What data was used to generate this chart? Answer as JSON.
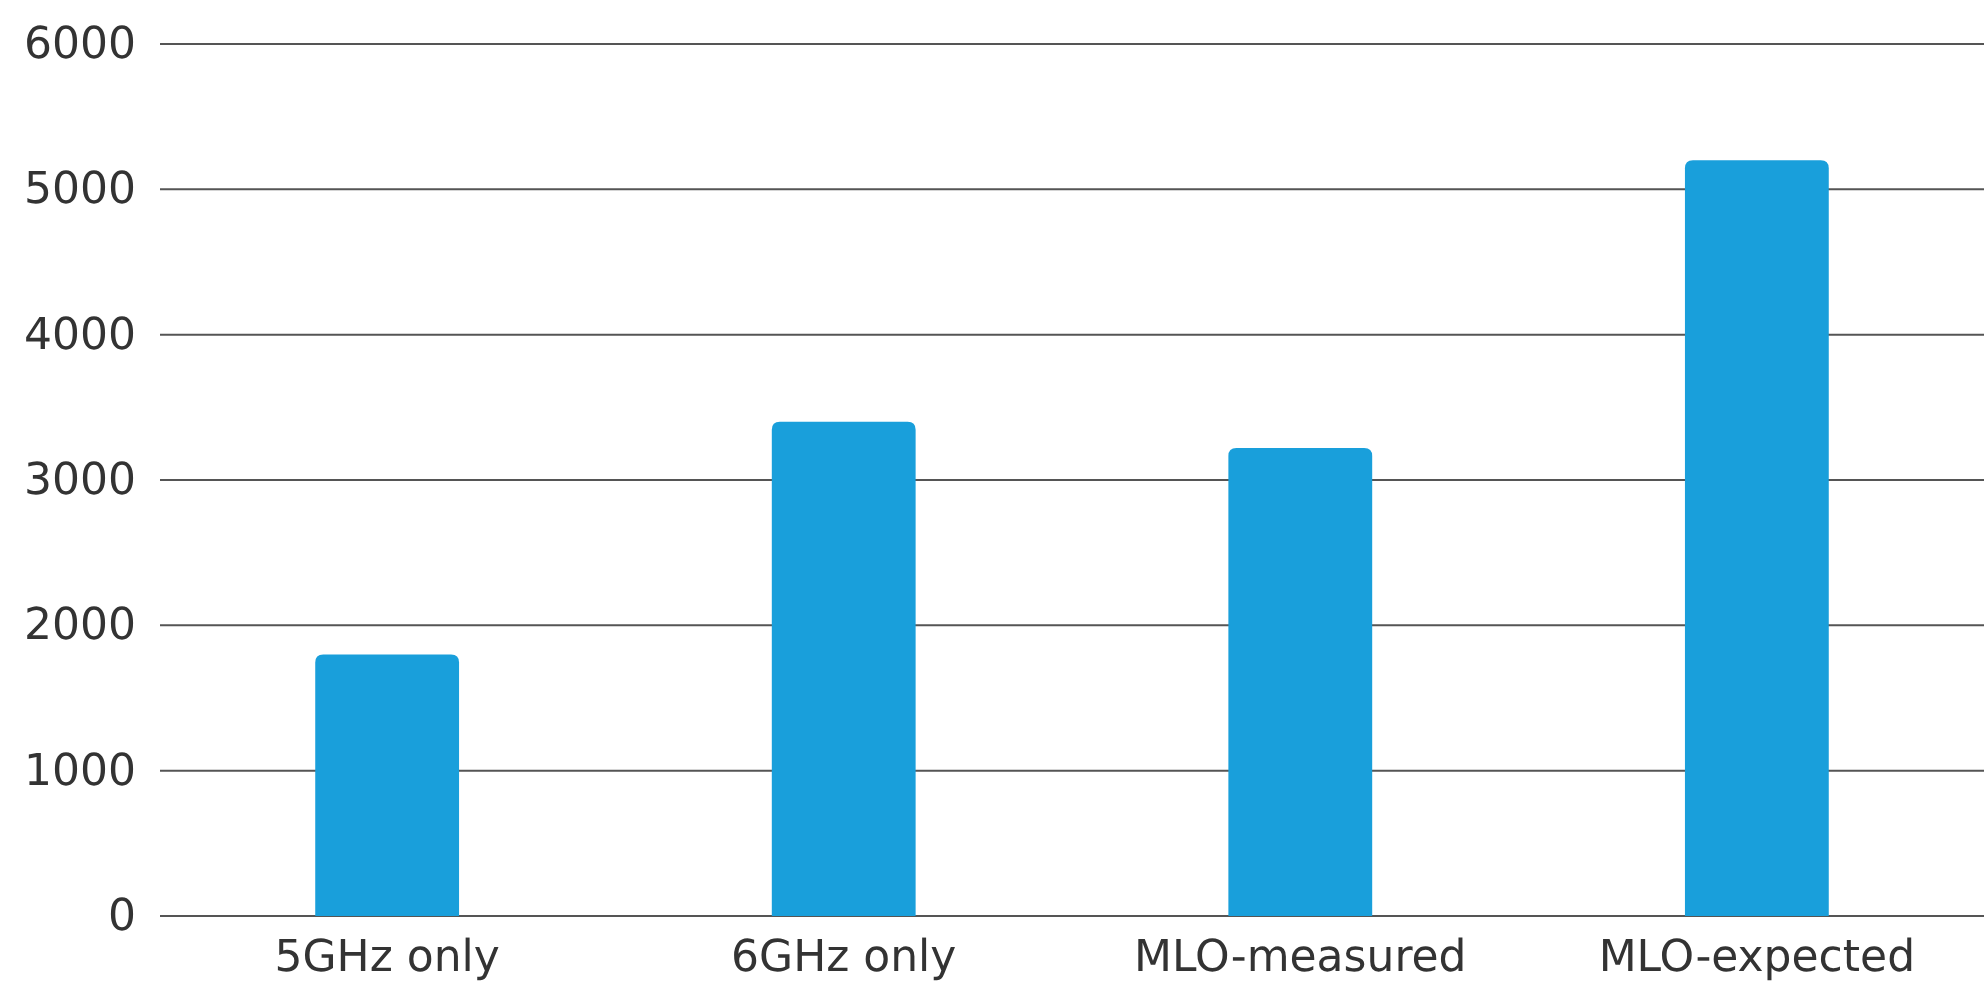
{
  "chart_data": {
    "type": "bar",
    "categories": [
      "5GHz only",
      "6GHz only",
      "MLO-measured",
      "MLO-expected"
    ],
    "values": [
      1800,
      3400,
      3220,
      5200
    ],
    "color": "#199fdb",
    "ylim": [
      0,
      6000
    ],
    "yticks": [
      0,
      1000,
      2000,
      3000,
      4000,
      5000,
      6000
    ],
    "grid": "y"
  }
}
